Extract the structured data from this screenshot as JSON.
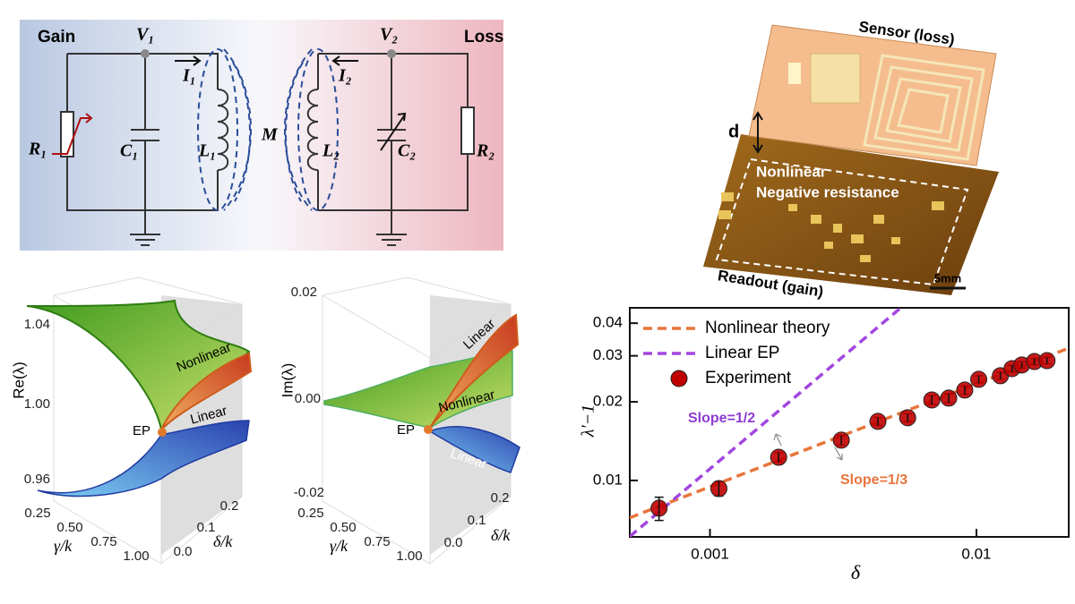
{
  "circuit": {
    "gain": "Gain",
    "loss": "Loss",
    "v1": "V₁",
    "v2": "V₂",
    "i1": "I₁",
    "i2": "I₂",
    "r1": "R₁",
    "c1": "C₁",
    "l1": "L₁",
    "m": "M",
    "l2": "L₂",
    "c2": "C₂",
    "r2": "R₂"
  },
  "device": {
    "sensor": "Sensor (loss)",
    "gap": "d",
    "nonlinear": "Nonlinear",
    "negative_resistance": "Negative resistance",
    "readout": "Readout (gain)",
    "scale": "5mm"
  },
  "surface_plots": [
    {
      "ylabel": "Re(λ)",
      "yticks": [
        "1.04",
        "1.00",
        "0.96"
      ],
      "xlabel": "γ/k",
      "xticks": [
        "0.25",
        "0.50",
        "0.75",
        "1.00"
      ],
      "zlabel": "δ/k",
      "zticks": [
        "0.0",
        "0.1",
        "0.2"
      ],
      "annotations": [
        "EP",
        "Nonlinear",
        "Linear"
      ]
    },
    {
      "ylabel": "Im(λ)",
      "yticks": [
        "0.02",
        "0.00",
        "-0.02"
      ],
      "xlabel": "γ/k",
      "xticks": [
        "0.25",
        "0.50",
        "0.75",
        "1.00"
      ],
      "zlabel": "δ/k",
      "zticks": [
        "0.0",
        "0.1",
        "0.2"
      ],
      "annotations": [
        "EP",
        "Linear",
        "Nonlinear",
        "Linear"
      ]
    }
  ],
  "chart_data": {
    "type": "scatter",
    "xlabel": "δ",
    "ylabel": "λ′−1",
    "xlog": true,
    "ylog": true,
    "xlim": [
      0.0005,
      0.0222
    ],
    "ylim": [
      0.00608,
      0.0458
    ],
    "xticks": [
      0.001,
      0.01
    ],
    "yticks": [
      0.01,
      0.02,
      0.03,
      0.04
    ],
    "legend": "upper left",
    "annotations": [
      "Slope=1/2",
      "Slope=1/3"
    ],
    "series": [
      {
        "name": "Nonlinear theory",
        "color": "#e8743b",
        "line_style": "dashed",
        "x": [
          0.0005,
          0.0222
        ],
        "values": [
          0.0072,
          0.0321
        ]
      },
      {
        "name": "Linear EP",
        "color": "#a346e0",
        "line_style": "dashed",
        "x": [
          0.0005,
          0.0052
        ],
        "values": [
          0.0061,
          0.0458
        ]
      },
      {
        "name": "Experiment",
        "color": "#c00000",
        "marker": "circle",
        "x": [
          0.000644,
          0.00108,
          0.00181,
          0.00311,
          0.00427,
          0.00552,
          0.0068,
          0.00787,
          0.00904,
          0.0102,
          0.0123,
          0.0136,
          0.0148,
          0.0165,
          0.0184
        ],
        "values": [
          0.00783,
          0.00931,
          0.01227,
          0.01426,
          0.01683,
          0.01738,
          0.02033,
          0.02066,
          0.02218,
          0.02438,
          0.02517,
          0.0268,
          0.02767,
          0.02852,
          0.02875
        ],
        "errors": [
          0.0008,
          0.0006,
          0.0005,
          0.0006,
          0.0006,
          0.0006,
          0.0008,
          0.0008,
          0.0008,
          0.0008,
          0.0008,
          0.0008,
          0.0008,
          0.0008,
          0.0008
        ]
      }
    ]
  }
}
